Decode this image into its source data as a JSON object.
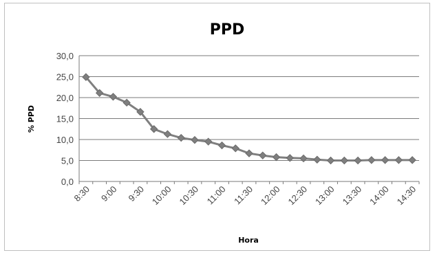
{
  "chart_data": {
    "type": "line",
    "title": "PPD",
    "xlabel": "Hora",
    "ylabel": "% PPD",
    "ylim": [
      0,
      30
    ],
    "y_ticks": [
      "0,0",
      "5,0",
      "10,0",
      "15,0",
      "20,0",
      "25,0",
      "30,0"
    ],
    "y_tick_values": [
      0,
      5,
      10,
      15,
      20,
      25,
      30
    ],
    "x_tick_labels": [
      "8:30",
      "9:00",
      "9:30",
      "10:00",
      "10:30",
      "11:00",
      "11:30",
      "12:00",
      "12:30",
      "13:00",
      "13:30",
      "14:00",
      "14:30"
    ],
    "grid": true,
    "legend": "none",
    "series_color": "#7f7f7f",
    "series": [
      {
        "x": [
          "8:30",
          "8:45",
          "9:00",
          "9:15",
          "9:30",
          "9:45",
          "10:00",
          "10:15",
          "10:30",
          "10:45",
          "11:00",
          "11:15",
          "11:30",
          "11:45",
          "12:00",
          "12:15",
          "12:30",
          "12:45",
          "13:00",
          "13:15",
          "13:30",
          "13:45",
          "14:00",
          "14:15",
          "14:30"
        ],
        "values": [
          24.9,
          21.1,
          20.2,
          18.8,
          16.6,
          12.5,
          11.3,
          10.4,
          9.9,
          9.5,
          8.6,
          7.9,
          6.7,
          6.2,
          5.8,
          5.6,
          5.5,
          5.2,
          5.0,
          5.0,
          5.0,
          5.1,
          5.1,
          5.1,
          5.1
        ]
      }
    ]
  }
}
